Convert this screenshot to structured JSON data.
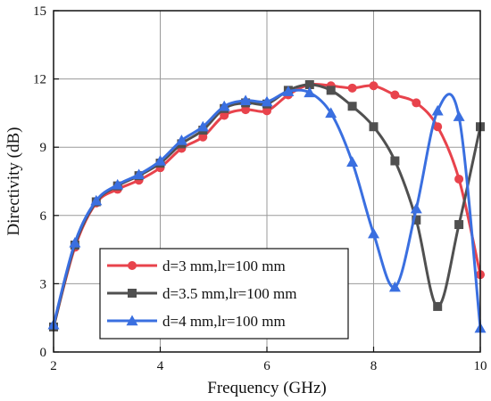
{
  "chart_data": {
    "type": "line",
    "title": "",
    "xlabel": "Frequency (GHz)",
    "ylabel": "Directivity (dB)",
    "xlim": [
      2,
      10
    ],
    "ylim": [
      0,
      15
    ],
    "xticks": [
      2,
      4,
      6,
      8,
      10
    ],
    "yticks": [
      0,
      3,
      6,
      9,
      12,
      15
    ],
    "grid": true,
    "legend_position": "bottom-left",
    "series": [
      {
        "name": "d=3 mm,lr=100 mm",
        "color": "#e8434c",
        "marker": "circle",
        "x": [
          2.0,
          2.4,
          2.8,
          3.2,
          3.6,
          4.0,
          4.4,
          4.8,
          5.2,
          5.6,
          6.0,
          6.4,
          6.8,
          7.2,
          7.6,
          8.0,
          8.4,
          8.8,
          9.2,
          9.6,
          10.0
        ],
        "y": [
          1.1,
          4.6,
          6.55,
          7.15,
          7.55,
          8.1,
          8.95,
          9.45,
          10.4,
          10.65,
          10.6,
          11.3,
          11.75,
          11.7,
          11.6,
          11.7,
          11.3,
          10.95,
          9.9,
          7.6,
          3.4
        ]
      },
      {
        "name": "d=3.5 mm,lr=100 mm",
        "color": "#505050",
        "marker": "square",
        "x": [
          2.0,
          2.4,
          2.8,
          3.2,
          3.6,
          4.0,
          4.4,
          4.8,
          5.2,
          5.6,
          6.0,
          6.4,
          6.8,
          7.2,
          7.6,
          8.0,
          8.4,
          8.8,
          9.2,
          9.6,
          10.0
        ],
        "y": [
          1.1,
          4.7,
          6.6,
          7.3,
          7.75,
          8.3,
          9.15,
          9.75,
          10.7,
          10.95,
          10.9,
          11.5,
          11.75,
          11.5,
          10.8,
          9.9,
          8.4,
          5.8,
          2.0,
          5.6,
          9.9
        ]
      },
      {
        "name": "d=4 mm,lr=100 mm",
        "color": "#3a6fe0",
        "marker": "triangle",
        "x": [
          2.0,
          2.4,
          2.8,
          3.2,
          3.6,
          4.0,
          4.4,
          4.8,
          5.2,
          5.6,
          6.0,
          6.4,
          6.8,
          7.2,
          7.6,
          8.0,
          8.4,
          8.8,
          9.2,
          9.6,
          10.0
        ],
        "y": [
          1.2,
          4.8,
          6.65,
          7.35,
          7.8,
          8.4,
          9.3,
          9.9,
          10.8,
          11.05,
          11.0,
          11.45,
          11.4,
          10.5,
          8.35,
          5.2,
          2.85,
          6.3,
          10.6,
          10.35,
          1.05
        ]
      }
    ]
  }
}
